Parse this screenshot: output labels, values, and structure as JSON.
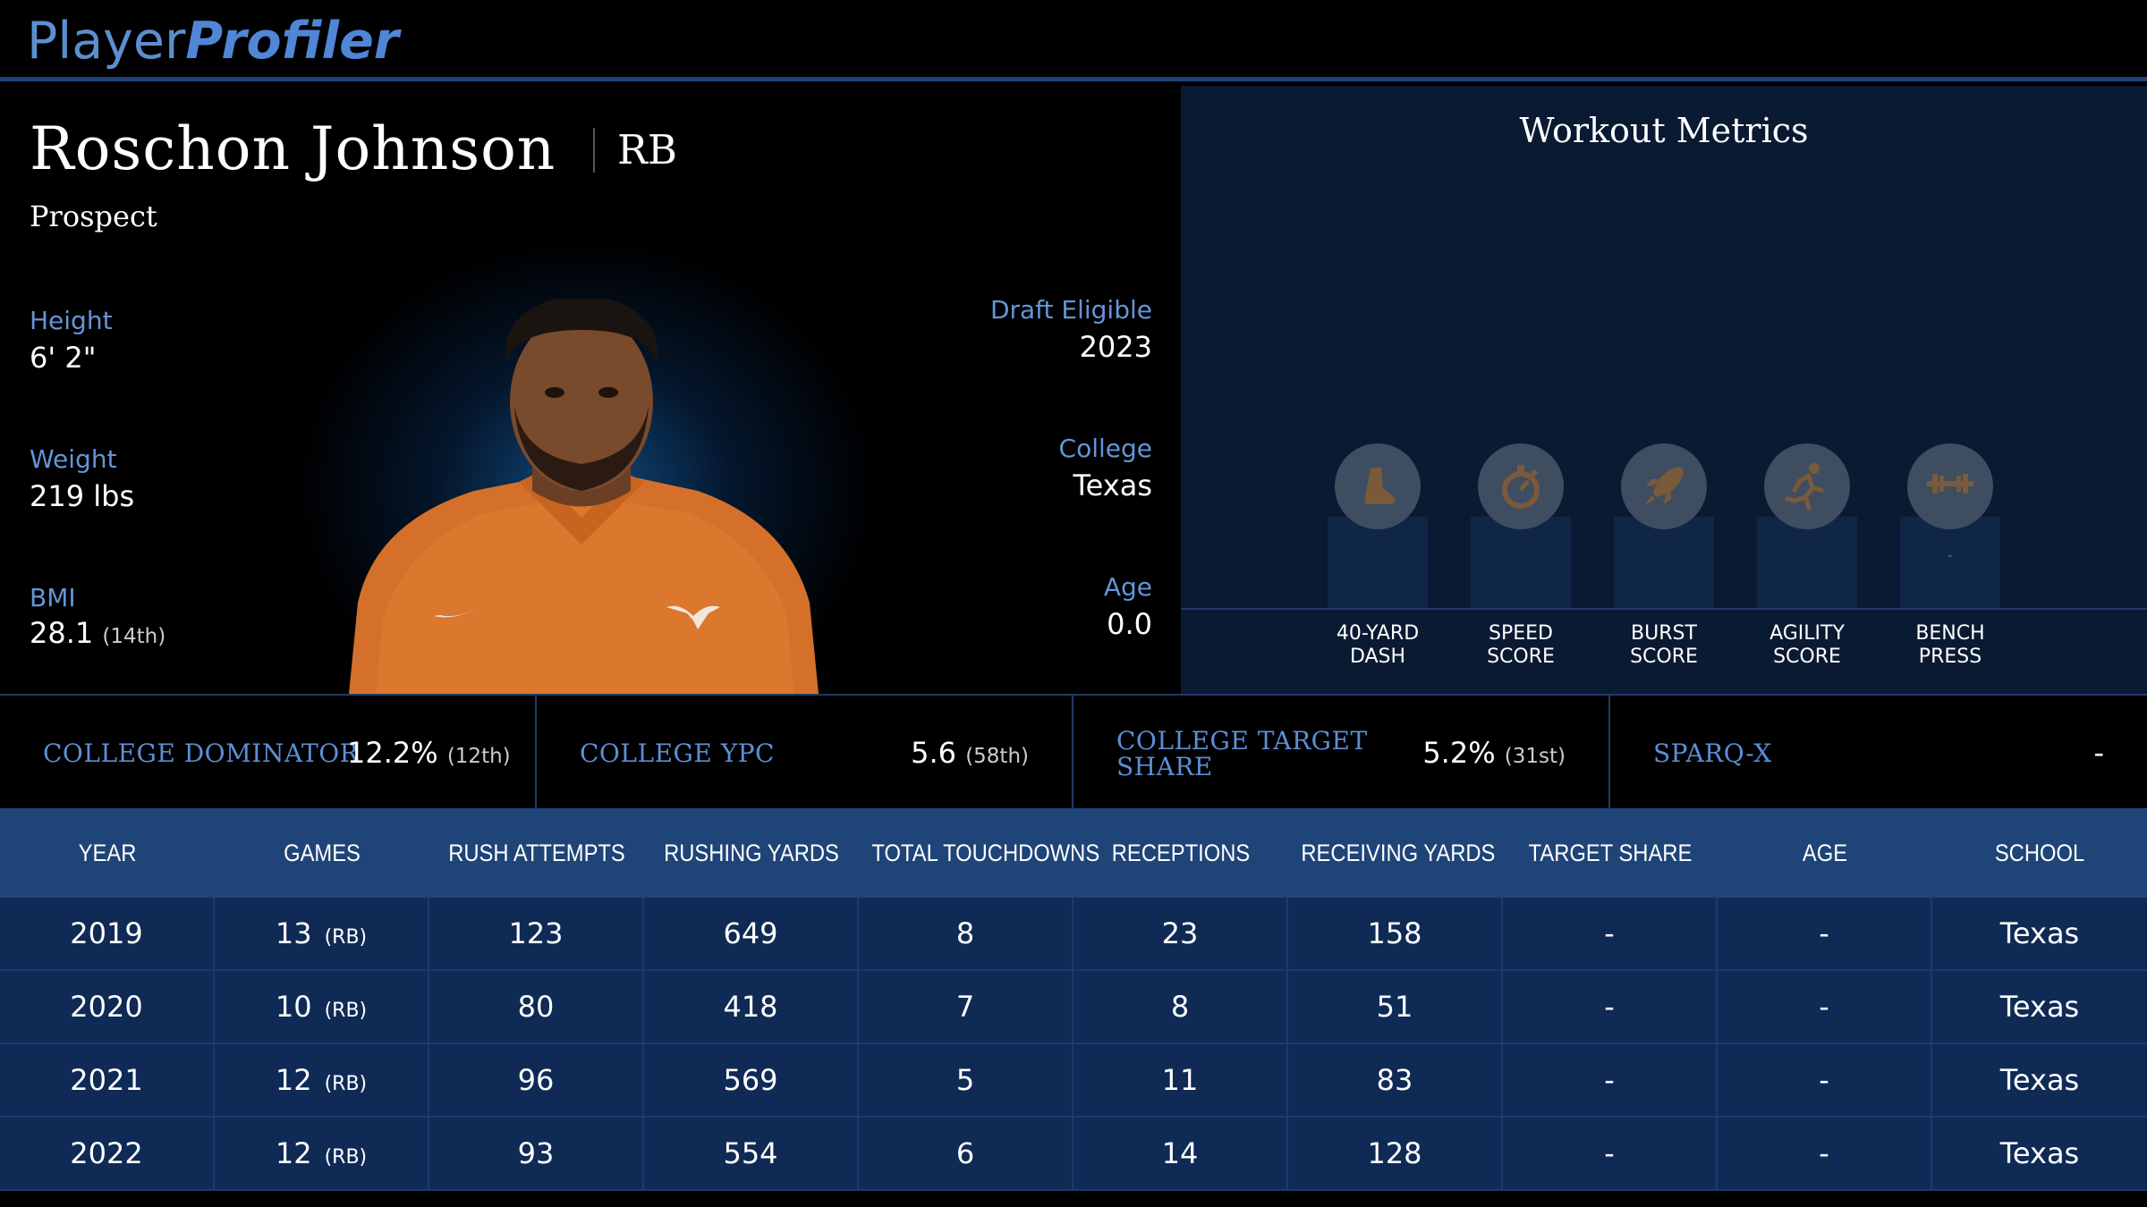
{
  "header": {
    "logo_part1": "Player",
    "logo_part2": "Profiler"
  },
  "player": {
    "name": "Roschon Johnson",
    "position": "RB",
    "status": "Prospect",
    "height_label": "Height",
    "height": "6' 2\"",
    "weight_label": "Weight",
    "weight": "219 lbs",
    "bmi_label": "BMI",
    "bmi": "28.1",
    "bmi_rank": "(14th)",
    "draft_label": "Draft Eligible",
    "draft": "2023",
    "college_label": "College",
    "college": "Texas",
    "age_label": "Age",
    "age": "0.0"
  },
  "workout": {
    "title": "Workout Metrics",
    "metrics": [
      {
        "label": "40-YARD\nDASH",
        "icon": "shoe-icon"
      },
      {
        "label": "SPEED\nSCORE",
        "icon": "stopwatch-icon"
      },
      {
        "label": "BURST\nSCORE",
        "icon": "rocket-icon"
      },
      {
        "label": "AGILITY\nSCORE",
        "icon": "runner-icon"
      },
      {
        "label": "BENCH\nPRESS",
        "icon": "barbell-icon",
        "value": "-"
      }
    ]
  },
  "stats": [
    {
      "label": "COLLEGE DOMINATOR",
      "value": "12.2%",
      "rank": "(12th)"
    },
    {
      "label": "COLLEGE YPC",
      "value": "5.6",
      "rank": "(58th)"
    },
    {
      "label": "COLLEGE TARGET SHARE",
      "value": "5.2%",
      "rank": "(31st)"
    },
    {
      "label": "SPARQ-X",
      "value": "-",
      "rank": ""
    }
  ],
  "table": {
    "headers": [
      "YEAR",
      "GAMES",
      "RUSH ATTEMPTS",
      "RUSHING YARDS",
      "TOTAL TOUCHDOWNS",
      "RECEPTIONS",
      "RECEIVING YARDS",
      "TARGET SHARE",
      "AGE",
      "SCHOOL"
    ],
    "rows": [
      {
        "year": "2019",
        "games": "13",
        "games_pos": "(RB)",
        "rush_att": "123",
        "rush_yds": "649",
        "td": "8",
        "rec": "23",
        "rec_yds": "158",
        "tgt": "-",
        "age": "-",
        "school": "Texas"
      },
      {
        "year": "2020",
        "games": "10",
        "games_pos": "(RB)",
        "rush_att": "80",
        "rush_yds": "418",
        "td": "7",
        "rec": "8",
        "rec_yds": "51",
        "tgt": "-",
        "age": "-",
        "school": "Texas"
      },
      {
        "year": "2021",
        "games": "12",
        "games_pos": "(RB)",
        "rush_att": "96",
        "rush_yds": "569",
        "td": "5",
        "rec": "11",
        "rec_yds": "83",
        "tgt": "-",
        "age": "-",
        "school": "Texas"
      },
      {
        "year": "2022",
        "games": "12",
        "games_pos": "(RB)",
        "rush_att": "93",
        "rush_yds": "554",
        "td": "6",
        "rec": "14",
        "rec_yds": "128",
        "tgt": "-",
        "age": "-",
        "school": "Texas"
      }
    ]
  }
}
